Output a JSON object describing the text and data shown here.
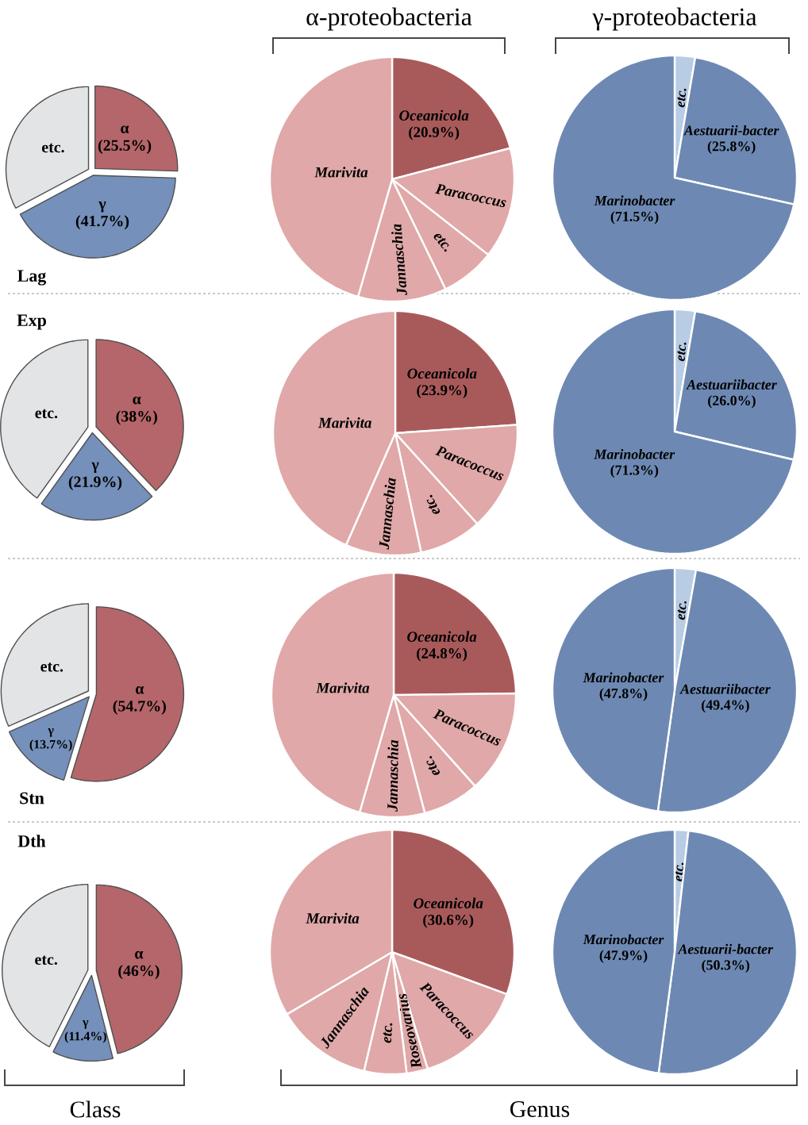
{
  "chart_data": [
    {
      "type": "pie",
      "title": "Lag",
      "categories": [
        "α",
        "γ",
        "etc."
      ],
      "values": [
        25.5,
        41.7,
        32.8
      ],
      "colors": [
        "#b5666a",
        "#7590ba",
        "#e2e4e6"
      ],
      "value_labels": [
        "(25.5%)",
        "(41.7%)",
        null
      ]
    },
    {
      "type": "pie",
      "title": "α-proteobacteria",
      "categories": [
        "Oceanicola",
        "Paracoccus",
        "etc.",
        "Jannaschia",
        "Marivita"
      ],
      "values": [
        20.9,
        14.7,
        7.2,
        11.7,
        45.5
      ],
      "colors": [
        "#a85a5a",
        "#e0a8a8",
        "#e0a8a8",
        "#e0a8a8",
        "#e0a8a8"
      ],
      "value_labels": [
        "(20.9%)",
        null,
        null,
        null,
        null
      ]
    },
    {
      "type": "pie",
      "title": "γ-proteobacteria",
      "categories": [
        "etc.",
        "Aestuarii-bacter",
        "Marinobacter"
      ],
      "values": [
        2.7,
        25.8,
        71.5
      ],
      "colors": [
        "#b8cce4",
        "#6d89b3",
        "#6d89b3"
      ],
      "value_labels": [
        null,
        "(25.8%)",
        "(71.5%)"
      ]
    },
    {
      "type": "pie",
      "title": "Exp",
      "categories": [
        "α",
        "γ",
        "etc."
      ],
      "values": [
        38,
        21.9,
        40.1
      ],
      "colors": [
        "#b5666a",
        "#7590ba",
        "#e2e4e6"
      ],
      "value_labels": [
        "(38%)",
        "(21.9%)",
        null
      ]
    },
    {
      "type": "pie",
      "categories": [
        "Oceanicola",
        "Paracoccus",
        "etc.",
        "Jannaschia",
        "Marivita"
      ],
      "values": [
        23.9,
        14.4,
        8.3,
        10.0,
        43.4
      ],
      "colors": [
        "#a85a5a",
        "#e0a8a8",
        "#e0a8a8",
        "#e0a8a8",
        "#e0a8a8"
      ],
      "value_labels": [
        "(23.9%)",
        null,
        null,
        null,
        null
      ]
    },
    {
      "type": "pie",
      "categories": [
        "etc.",
        "Aestuariibacter",
        "Marinobacter"
      ],
      "values": [
        2.7,
        26.0,
        71.3
      ],
      "colors": [
        "#b8cce4",
        "#6d89b3",
        "#6d89b3"
      ],
      "value_labels": [
        null,
        "(26.0%)",
        "(71.3%)"
      ]
    },
    {
      "type": "pie",
      "title": "Stn",
      "categories": [
        "α",
        "γ",
        "etc."
      ],
      "values": [
        54.7,
        13.7,
        31.6
      ],
      "colors": [
        "#b5666a",
        "#7590ba",
        "#e2e4e6"
      ],
      "value_labels": [
        "(54.7%)",
        "(13.7%)",
        null
      ]
    },
    {
      "type": "pie",
      "categories": [
        "Oceanicola",
        "Paracoccus",
        "etc.",
        "Jannaschia",
        "Marivita"
      ],
      "values": [
        24.8,
        13.6,
        7.5,
        8.6,
        45.5
      ],
      "colors": [
        "#a85a5a",
        "#e0a8a8",
        "#e0a8a8",
        "#e0a8a8",
        "#e0a8a8"
      ],
      "value_labels": [
        "(24.8%)",
        null,
        null,
        null,
        null
      ]
    },
    {
      "type": "pie",
      "categories": [
        "etc.",
        "Aestuariibacter",
        "Marinobacter"
      ],
      "values": [
        2.8,
        49.4,
        47.8
      ],
      "colors": [
        "#b8cce4",
        "#6d89b3",
        "#6d89b3"
      ],
      "value_labels": [
        null,
        "(49.4%)",
        "(47.8%)"
      ]
    },
    {
      "type": "pie",
      "title": "Dth",
      "xlabel": "Class",
      "categories": [
        "α",
        "γ",
        "etc."
      ],
      "values": [
        46,
        11.4,
        42.6
      ],
      "colors": [
        "#b5666a",
        "#7590ba",
        "#e2e4e6"
      ],
      "value_labels": [
        "(46%)",
        "(11.4%)",
        null
      ]
    },
    {
      "type": "pie",
      "xlabel": "Genus",
      "categories": [
        "Oceanicola",
        "Paracoccus",
        "Roseovarius",
        "etc.",
        "Jannaschia",
        "Marivita"
      ],
      "values": [
        30.6,
        14.7,
        2.8,
        5.6,
        12.8,
        33.5
      ],
      "colors": [
        "#a85a5a",
        "#e0a8a8",
        "#e0a8a8",
        "#e0a8a8",
        "#e0a8a8",
        "#e0a8a8"
      ],
      "value_labels": [
        "(30.6%)",
        null,
        null,
        null,
        null,
        null
      ]
    },
    {
      "type": "pie",
      "categories": [
        "etc.",
        "Aestuarii-bacter",
        "Marinobacter"
      ],
      "values": [
        1.8,
        50.3,
        47.9
      ],
      "colors": [
        "#b8cce4",
        "#6d89b3",
        "#6d89b3"
      ],
      "value_labels": [
        null,
        "(50.3%)",
        "(47.9%)"
      ]
    }
  ]
}
